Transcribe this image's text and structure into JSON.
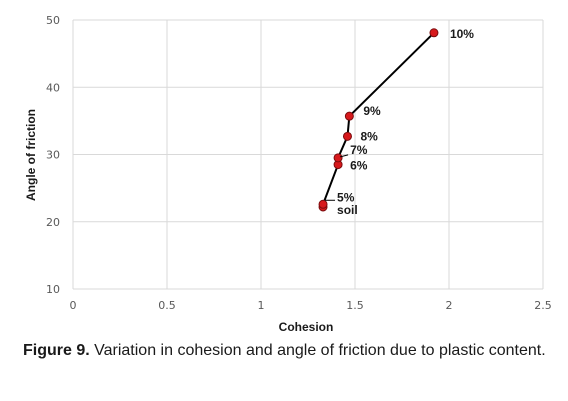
{
  "chart_data": {
    "type": "scatter",
    "xlabel": "Cohesion",
    "ylabel": "Angle of friction",
    "xlim": [
      0,
      2.5
    ],
    "ylim": [
      10,
      50
    ],
    "xticks": [
      "0",
      "0.5",
      "1",
      "1.5",
      "2",
      "2.5"
    ],
    "yticks": [
      "10",
      "20",
      "30",
      "40",
      "50"
    ],
    "grid": true,
    "points": [
      {
        "label": "soil",
        "x": 1.33,
        "y": 22.2
      },
      {
        "label": "5%",
        "x": 1.33,
        "y": 22.6
      },
      {
        "label": "6%",
        "x": 1.41,
        "y": 28.5
      },
      {
        "label": "7%",
        "x": 1.41,
        "y": 29.5
      },
      {
        "label": "8%",
        "x": 1.46,
        "y": 32.7
      },
      {
        "label": "9%",
        "x": 1.47,
        "y": 35.7
      },
      {
        "label": "10%",
        "x": 1.92,
        "y": 48.1
      }
    ],
    "marker_color": "#d7191c",
    "line_color": "#000000"
  },
  "caption": {
    "figure_label": "Figure 9.",
    "text": "Variation in cohesion and angle of friction due to plastic content."
  }
}
